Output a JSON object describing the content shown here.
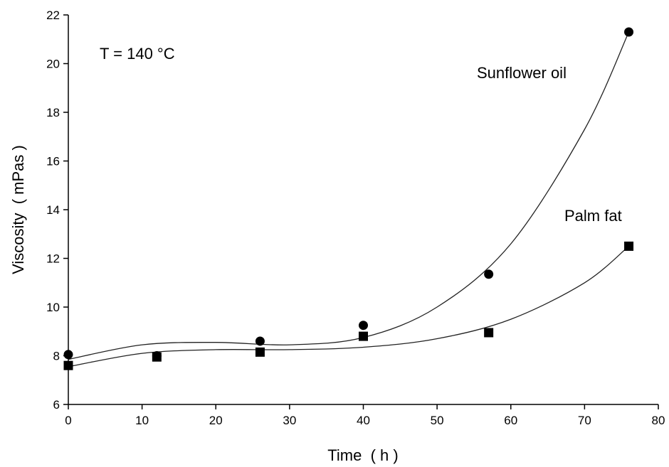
{
  "chart_data": {
    "type": "scatter",
    "xlabel": "Time  ( h )",
    "ylabel": "Viscosity  ( mPas )",
    "xlim": [
      0,
      80
    ],
    "ylim": [
      6,
      22
    ],
    "x_ticks": [
      0,
      10,
      20,
      30,
      40,
      50,
      60,
      70,
      80
    ],
    "y_ticks": [
      6,
      8,
      10,
      12,
      14,
      16,
      18,
      20,
      22
    ],
    "grid": false,
    "annotations": [
      "T = 140 °C"
    ],
    "series": [
      {
        "name": "Sunflower oil",
        "marker": "circle",
        "x": [
          0,
          12,
          26,
          40,
          57,
          76
        ],
        "y": [
          8.05,
          8.0,
          8.6,
          9.25,
          11.35,
          21.3
        ],
        "fit_curve": [
          [
            0,
            7.85
          ],
          [
            10,
            8.45
          ],
          [
            20,
            8.55
          ],
          [
            30,
            8.45
          ],
          [
            40,
            8.75
          ],
          [
            50,
            10.0
          ],
          [
            60,
            12.6
          ],
          [
            70,
            17.3
          ],
          [
            76,
            21.3
          ]
        ]
      },
      {
        "name": "Palm fat",
        "marker": "square",
        "x": [
          0,
          12,
          26,
          40,
          57,
          76
        ],
        "y": [
          7.6,
          7.95,
          8.15,
          8.8,
          8.95,
          12.5
        ],
        "fit_curve": [
          [
            0,
            7.55
          ],
          [
            10,
            8.1
          ],
          [
            20,
            8.25
          ],
          [
            30,
            8.25
          ],
          [
            40,
            8.35
          ],
          [
            50,
            8.7
          ],
          [
            60,
            9.5
          ],
          [
            70,
            11.0
          ],
          [
            76,
            12.5
          ]
        ]
      }
    ]
  }
}
